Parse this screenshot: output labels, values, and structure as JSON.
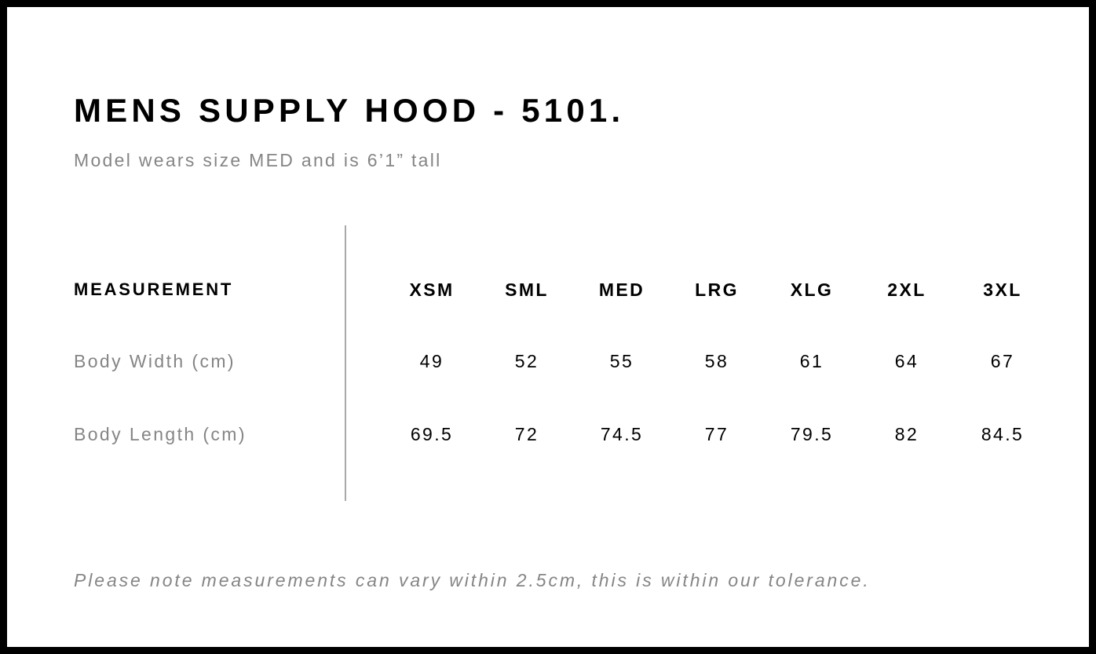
{
  "title": "MENS SUPPLY HOOD - 5101.",
  "subtitle": "Model wears size MED and is 6’1” tall",
  "table": {
    "header_label": "MEASUREMENT",
    "sizes": [
      "XSM",
      "SML",
      "MED",
      "LRG",
      "XLG",
      "2XL",
      "3XL"
    ],
    "rows": [
      {
        "label": "Body Width (cm)",
        "values": [
          "49",
          "52",
          "55",
          "58",
          "61",
          "64",
          "67"
        ]
      },
      {
        "label": "Body Length (cm)",
        "values": [
          "69.5",
          "72",
          "74.5",
          "77",
          "79.5",
          "82",
          "84.5"
        ]
      }
    ]
  },
  "note": "Please note measurements can vary within 2.5cm, this is within our tolerance."
}
